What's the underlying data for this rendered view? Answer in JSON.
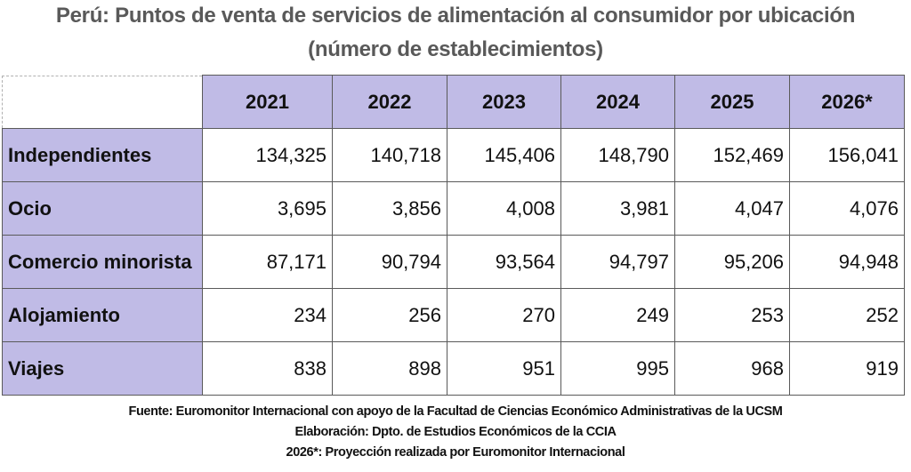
{
  "title": {
    "line1": "Perú: Puntos de venta de servicios de alimentación al consumidor por ubicación",
    "line2": "(número de establecimientos)"
  },
  "table": {
    "columns": [
      "2021",
      "2022",
      "2023",
      "2024",
      "2025",
      "2026*"
    ],
    "rows": [
      {
        "label": "Independientes",
        "values": [
          "134,325",
          "140,718",
          "145,406",
          "148,790",
          "152,469",
          "156,041"
        ]
      },
      {
        "label": "Ocio",
        "values": [
          "3,695",
          "3,856",
          "4,008",
          "3,981",
          "4,047",
          "4,076"
        ]
      },
      {
        "label": "Comercio minorista",
        "values": [
          "87,171",
          "90,794",
          "93,564",
          "94,797",
          "95,206",
          "94,948"
        ]
      },
      {
        "label": "Alojamiento",
        "values": [
          "234",
          "256",
          "270",
          "249",
          "253",
          "252"
        ]
      },
      {
        "label": "Viajes",
        "values": [
          "838",
          "898",
          "951",
          "995",
          "968",
          "919"
        ]
      }
    ]
  },
  "notes": {
    "source": "Fuente: Euromonitor Internacional con apoyo de la Facultad de Ciencias Económico Administrativas de la UCSM",
    "elaboration": "Elaboración: Dpto. de Estudios Económicos de la CCIA",
    "projection": "2026*: Proyección realizada por Euromonitor Internacional"
  },
  "colors": {
    "header_fill": "#c0bbe6",
    "title_text": "#595959",
    "border": "#5a5a5a"
  }
}
